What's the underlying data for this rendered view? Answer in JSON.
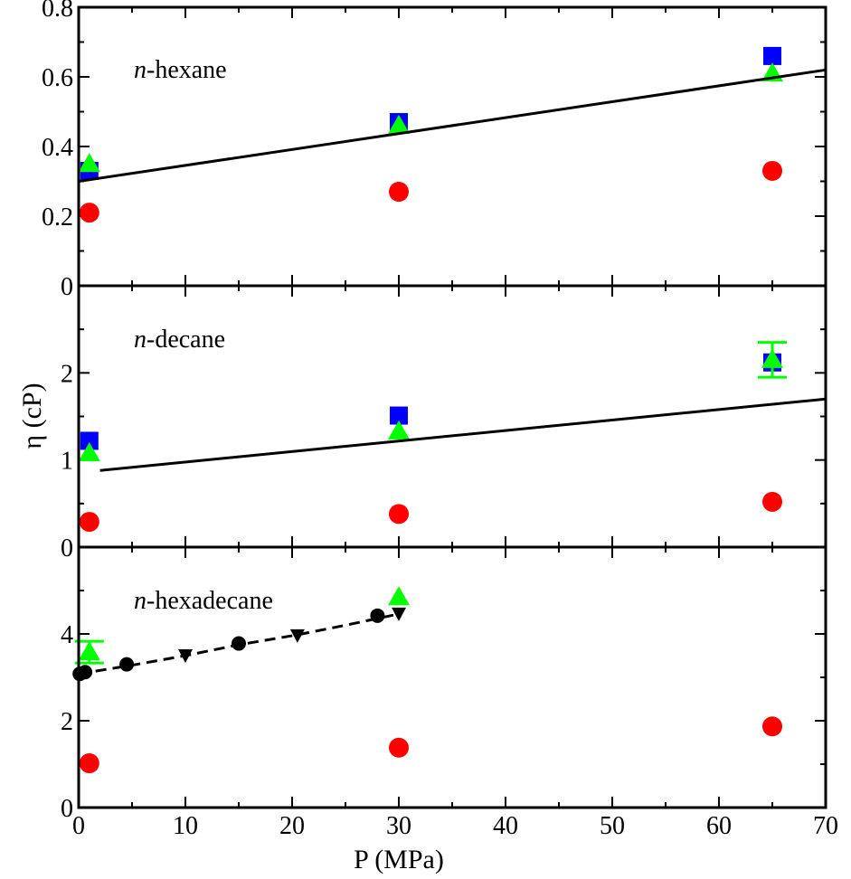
{
  "chart_data": {
    "type": "scatter",
    "xlabel": "P (MPa)",
    "ylabel": "η (cP)",
    "xlim": [
      0,
      70
    ],
    "x_ticks": [
      0,
      10,
      20,
      30,
      40,
      50,
      60,
      70
    ],
    "grid": false,
    "legend": "none",
    "colors": {
      "red": "#ff0000",
      "blue": "#0000ff",
      "green": "#00ff00",
      "black": "#000000"
    },
    "panels": [
      {
        "label_italic": "n",
        "label_rest": "-hexane",
        "ylim": [
          0,
          0.8
        ],
        "y_ticks": [
          0,
          0.2,
          0.4,
          0.6,
          0.8
        ],
        "y_tick_labels": [
          "0",
          "0.2",
          "0.4",
          "0.6",
          "0.8"
        ],
        "series": [
          {
            "marker": "circle",
            "color": "red",
            "points": [
              [
                1,
                0.21
              ],
              [
                30,
                0.27
              ],
              [
                65,
                0.33
              ]
            ]
          },
          {
            "marker": "square",
            "color": "blue",
            "points": [
              [
                1,
                0.33
              ],
              [
                30,
                0.47
              ],
              [
                65,
                0.66
              ]
            ]
          },
          {
            "marker": "triangle-up",
            "color": "green",
            "points": [
              [
                1,
                0.35
              ],
              [
                30,
                0.46
              ],
              [
                65,
                0.61
              ]
            ]
          },
          {
            "marker": "line",
            "style": "solid",
            "color": "black",
            "points": [
              [
                0,
                0.3
              ],
              [
                70,
                0.62
              ]
            ]
          }
        ]
      },
      {
        "label_italic": "n",
        "label_rest": "-decane",
        "ylim": [
          0,
          3
        ],
        "y_ticks": [
          0,
          1,
          2
        ],
        "y_tick_labels": [
          "0",
          "1",
          "2"
        ],
        "series": [
          {
            "marker": "circle",
            "color": "red",
            "points": [
              [
                1,
                0.29
              ],
              [
                30,
                0.38
              ],
              [
                65,
                0.52
              ]
            ]
          },
          {
            "marker": "square",
            "color": "blue",
            "points": [
              [
                1,
                1.22
              ],
              [
                30,
                1.51
              ],
              [
                65,
                2.12
              ]
            ]
          },
          {
            "marker": "triangle-up",
            "color": "green",
            "points": [
              [
                1,
                1.08
              ],
              [
                30,
                1.33
              ],
              [
                65,
                2.15
              ]
            ],
            "errors": [
              0,
              0,
              0.2
            ]
          },
          {
            "marker": "line",
            "style": "solid",
            "color": "black",
            "points": [
              [
                2,
                0.88
              ],
              [
                70,
                1.7
              ]
            ]
          }
        ]
      },
      {
        "label_italic": "n",
        "label_rest": "-hexadecane",
        "ylim": [
          0,
          6
        ],
        "y_ticks": [
          0,
          2,
          4
        ],
        "y_tick_labels": [
          "0",
          "2",
          "4"
        ],
        "series": [
          {
            "marker": "circle",
            "color": "red",
            "points": [
              [
                1,
                1.02
              ],
              [
                30,
                1.38
              ],
              [
                65,
                1.87
              ]
            ]
          },
          {
            "marker": "triangle-up",
            "color": "green",
            "points": [
              [
                1,
                3.58
              ],
              [
                30,
                4.85
              ]
            ],
            "errors": [
              0.25,
              0
            ]
          },
          {
            "marker": "small-circle",
            "color": "black",
            "points": [
              [
                0.1,
                3.08
              ],
              [
                0.6,
                3.12
              ],
              [
                4.5,
                3.3
              ],
              [
                15,
                3.78
              ],
              [
                28,
                4.42
              ]
            ]
          },
          {
            "marker": "triangle-down",
            "color": "black",
            "points": [
              [
                10,
                3.5
              ],
              [
                20.5,
                3.96
              ],
              [
                30,
                4.46
              ]
            ]
          },
          {
            "marker": "line",
            "style": "dashed",
            "color": "black",
            "points": [
              [
                0,
                3.08
              ],
              [
                5,
                3.28
              ],
              [
                10,
                3.5
              ],
              [
                15,
                3.75
              ],
              [
                20.5,
                3.98
              ],
              [
                25,
                4.2
              ],
              [
                30,
                4.46
              ]
            ]
          }
        ]
      }
    ]
  }
}
